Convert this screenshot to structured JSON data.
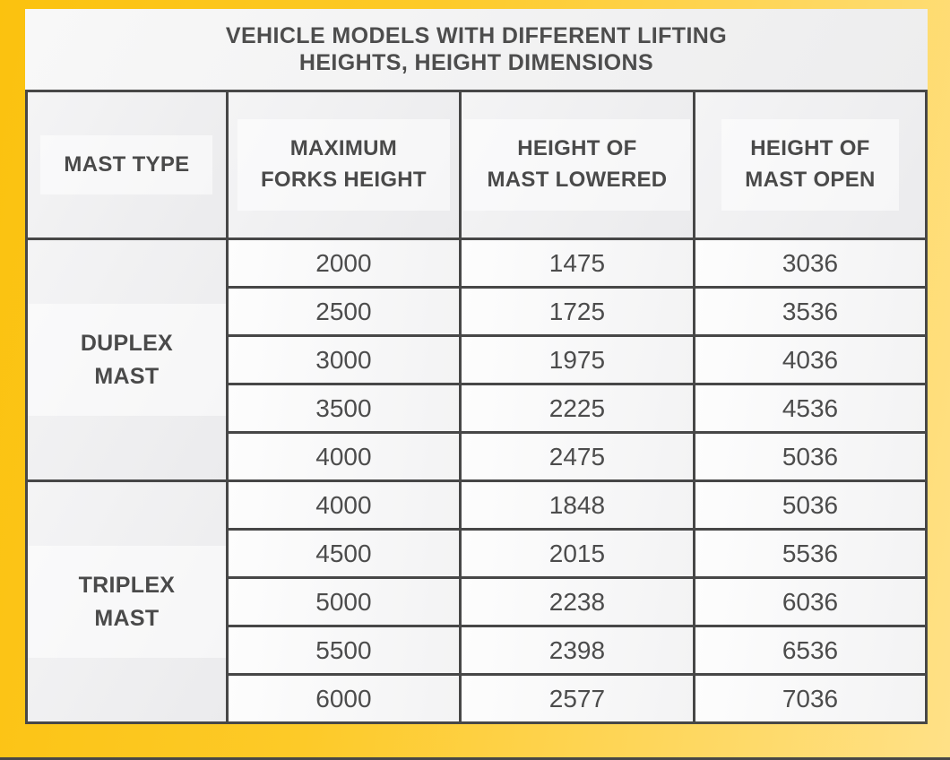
{
  "title": {
    "line1": "VEHICLE MODELS WITH DIFFERENT LIFTING",
    "line2": "HEIGHTS, HEIGHT DIMENSIONS"
  },
  "table": {
    "columns": [
      {
        "label": "MAST TYPE",
        "lines": [
          "MAST TYPE"
        ]
      },
      {
        "label": "MAXIMUM FORKS HEIGHT",
        "lines": [
          "MAXIMUM",
          "FORKS HEIGHT"
        ]
      },
      {
        "label": "HEIGHT OF MAST LOWERED",
        "lines": [
          "HEIGHT OF",
          "MAST LOWERED"
        ]
      },
      {
        "label": "HEIGHT OF MAST OPEN",
        "lines": [
          "HEIGHT OF",
          "MAST OPEN"
        ]
      }
    ],
    "groups": [
      {
        "mast_type": "DUPLEX MAST",
        "rows": [
          [
            "2000",
            "1475",
            "3036"
          ],
          [
            "2500",
            "1725",
            "3536"
          ],
          [
            "3000",
            "1975",
            "4036"
          ],
          [
            "3500",
            "2225",
            "4536"
          ],
          [
            "4000",
            "2475",
            "5036"
          ]
        ]
      },
      {
        "mast_type": "TRIPLEX MAST",
        "rows": [
          [
            "4000",
            "1848",
            "5036"
          ],
          [
            "4500",
            "2015",
            "5536"
          ],
          [
            "5000",
            "2238",
            "6036"
          ],
          [
            "5500",
            "2398",
            "6536"
          ],
          [
            "6000",
            "2577",
            "7036"
          ]
        ]
      }
    ]
  },
  "chart_data": {
    "type": "table",
    "title": "VEHICLE MODELS WITH DIFFERENT LIFTING HEIGHTS, HEIGHT DIMENSIONS",
    "columns": [
      "MAST TYPE",
      "MAXIMUM FORKS HEIGHT",
      "HEIGHT OF MAST LOWERED",
      "HEIGHT OF MAST OPEN"
    ],
    "rows": [
      [
        "DUPLEX MAST",
        2000,
        1475,
        3036
      ],
      [
        "DUPLEX MAST",
        2500,
        1725,
        3536
      ],
      [
        "DUPLEX MAST",
        3000,
        1975,
        4036
      ],
      [
        "DUPLEX MAST",
        3500,
        2225,
        4536
      ],
      [
        "DUPLEX MAST",
        4000,
        2475,
        5036
      ],
      [
        "TRIPLEX MAST",
        4000,
        1848,
        5036
      ],
      [
        "TRIPLEX MAST",
        4500,
        2015,
        5536
      ],
      [
        "TRIPLEX MAST",
        5000,
        2238,
        6036
      ],
      [
        "TRIPLEX MAST",
        5500,
        2398,
        6536
      ],
      [
        "TRIPLEX MAST",
        6000,
        2577,
        7036
      ]
    ]
  },
  "colors": {
    "background_gold_left": "#fbc20f",
    "background_gold_right": "#ffe187",
    "band_light": "#f5f5f6",
    "cell_light": "#fdfdfd",
    "border_dark": "#474747",
    "text_dark": "#4a4a4a"
  }
}
